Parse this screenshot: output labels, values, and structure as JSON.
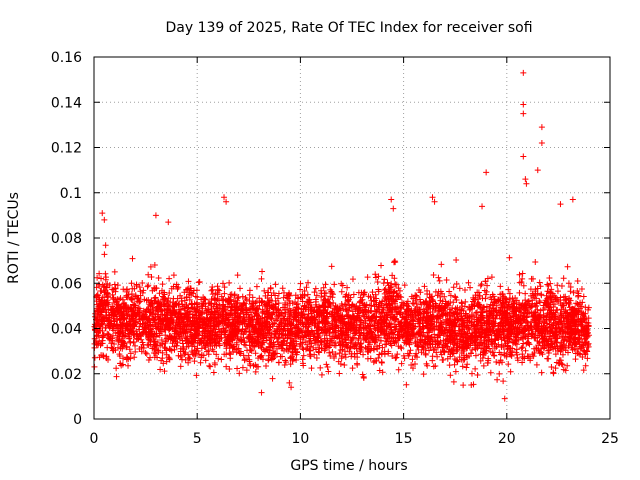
{
  "chart_data": {
    "type": "scatter",
    "title": "Day 139 of 2025, Rate Of TEC Index for receiver sofi",
    "xlabel": "GPS time / hours",
    "ylabel": "ROTI / TECUs",
    "xlim": [
      0,
      25
    ],
    "ylim": [
      0,
      0.16
    ],
    "xticks": [
      "0",
      "5",
      "10",
      "15",
      "20",
      "25"
    ],
    "yticks": [
      "0",
      "0.02",
      "0.04",
      "0.06",
      "0.08",
      "0.1",
      "0.12",
      "0.14",
      "0.16"
    ],
    "grid": true,
    "marker": "+",
    "color": "#ff0000",
    "series": [
      {
        "name": "ROTI",
        "envelope": {
          "x": [
            0.0,
            0.25,
            0.5,
            1.0,
            1.5,
            2.0,
            2.5,
            3.0,
            3.5,
            4.0,
            4.5,
            5.0,
            5.5,
            6.0,
            6.5,
            7.0,
            7.5,
            8.0,
            8.5,
            9.0,
            9.5,
            10.0,
            10.5,
            11.0,
            11.5,
            12.0,
            12.5,
            13.0,
            13.5,
            14.0,
            14.5,
            15.0,
            15.5,
            16.0,
            16.5,
            17.0,
            17.5,
            18.0,
            18.5,
            19.0,
            19.5,
            20.0,
            20.5,
            21.0,
            21.5,
            22.0,
            22.5,
            23.0,
            23.5,
            24.0
          ],
          "median": [
            0.04,
            0.046,
            0.048,
            0.044,
            0.043,
            0.044,
            0.043,
            0.044,
            0.043,
            0.043,
            0.042,
            0.041,
            0.04,
            0.043,
            0.041,
            0.042,
            0.041,
            0.04,
            0.041,
            0.04,
            0.041,
            0.042,
            0.041,
            0.042,
            0.042,
            0.043,
            0.041,
            0.04,
            0.042,
            0.043,
            0.046,
            0.042,
            0.041,
            0.041,
            0.042,
            0.041,
            0.04,
            0.039,
            0.04,
            0.041,
            0.04,
            0.041,
            0.04,
            0.042,
            0.044,
            0.042,
            0.04,
            0.041,
            0.04,
            0.04
          ],
          "spread": [
            0.018,
            0.022,
            0.024,
            0.022,
            0.021,
            0.021,
            0.021,
            0.022,
            0.021,
            0.021,
            0.021,
            0.02,
            0.02,
            0.022,
            0.021,
            0.021,
            0.02,
            0.02,
            0.02,
            0.02,
            0.021,
            0.021,
            0.02,
            0.021,
            0.021,
            0.021,
            0.02,
            0.02,
            0.021,
            0.022,
            0.023,
            0.021,
            0.021,
            0.021,
            0.021,
            0.021,
            0.021,
            0.021,
            0.021,
            0.021,
            0.021,
            0.021,
            0.021,
            0.022,
            0.023,
            0.022,
            0.021,
            0.021,
            0.02,
            0.019
          ]
        },
        "outliers": [
          {
            "x": 0.4,
            "y": 0.091
          },
          {
            "x": 0.5,
            "y": 0.088
          },
          {
            "x": 3.0,
            "y": 0.09
          },
          {
            "x": 3.6,
            "y": 0.087
          },
          {
            "x": 6.3,
            "y": 0.098
          },
          {
            "x": 6.4,
            "y": 0.096
          },
          {
            "x": 14.4,
            "y": 0.097
          },
          {
            "x": 14.5,
            "y": 0.093
          },
          {
            "x": 16.4,
            "y": 0.098
          },
          {
            "x": 16.5,
            "y": 0.096
          },
          {
            "x": 18.8,
            "y": 0.094
          },
          {
            "x": 19.0,
            "y": 0.109
          },
          {
            "x": 19.9,
            "y": 0.009
          },
          {
            "x": 20.8,
            "y": 0.153
          },
          {
            "x": 20.8,
            "y": 0.139
          },
          {
            "x": 20.8,
            "y": 0.135
          },
          {
            "x": 20.8,
            "y": 0.116
          },
          {
            "x": 20.9,
            "y": 0.106
          },
          {
            "x": 20.95,
            "y": 0.104
          },
          {
            "x": 21.5,
            "y": 0.11
          },
          {
            "x": 21.7,
            "y": 0.129
          },
          {
            "x": 21.7,
            "y": 0.122
          },
          {
            "x": 22.6,
            "y": 0.095
          },
          {
            "x": 23.2,
            "y": 0.097
          }
        ]
      }
    ]
  }
}
